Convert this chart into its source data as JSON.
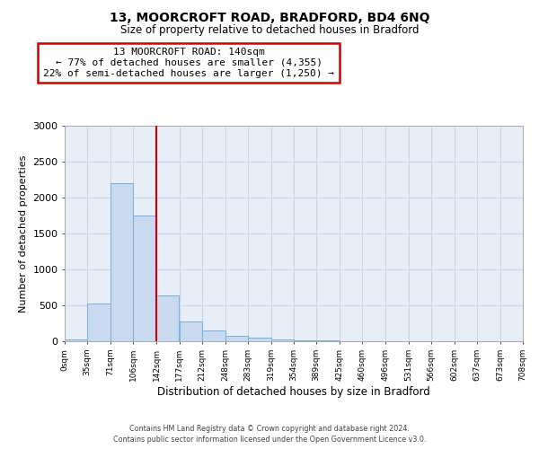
{
  "title": "13, MOORCROFT ROAD, BRADFORD, BD4 6NQ",
  "subtitle": "Size of property relative to detached houses in Bradford",
  "xlabel": "Distribution of detached houses by size in Bradford",
  "ylabel": "Number of detached properties",
  "bin_edges": [
    0,
    35,
    71,
    106,
    142,
    177,
    212,
    248,
    283,
    319,
    354,
    389,
    425,
    460,
    496,
    531,
    566,
    602,
    637,
    673,
    708
  ],
  "bin_labels": [
    "0sqm",
    "35sqm",
    "71sqm",
    "106sqm",
    "142sqm",
    "177sqm",
    "212sqm",
    "248sqm",
    "283sqm",
    "319sqm",
    "354sqm",
    "389sqm",
    "425sqm",
    "460sqm",
    "496sqm",
    "531sqm",
    "566sqm",
    "602sqm",
    "637sqm",
    "673sqm",
    "708sqm"
  ],
  "counts": [
    20,
    520,
    2200,
    1750,
    640,
    270,
    145,
    70,
    45,
    30,
    18,
    10,
    5,
    2,
    1,
    0,
    0,
    0,
    0,
    0
  ],
  "bar_color": "#c9d9f0",
  "bar_edge_color": "#7aaed6",
  "vline_x": 142,
  "vline_color": "#cc0000",
  "annotation_line1": "13 MOORCROFT ROAD: 140sqm",
  "annotation_line2": "← 77% of detached houses are smaller (4,355)",
  "annotation_line3": "22% of semi-detached houses are larger (1,250) →",
  "annotation_box_color": "#cc0000",
  "ylim": [
    0,
    3000
  ],
  "yticks": [
    0,
    500,
    1000,
    1500,
    2000,
    2500,
    3000
  ],
  "grid_color": "#ccd5e8",
  "background_color": "#e8eef8",
  "footer_line1": "Contains HM Land Registry data © Crown copyright and database right 2024.",
  "footer_line2": "Contains public sector information licensed under the Open Government Licence v3.0."
}
